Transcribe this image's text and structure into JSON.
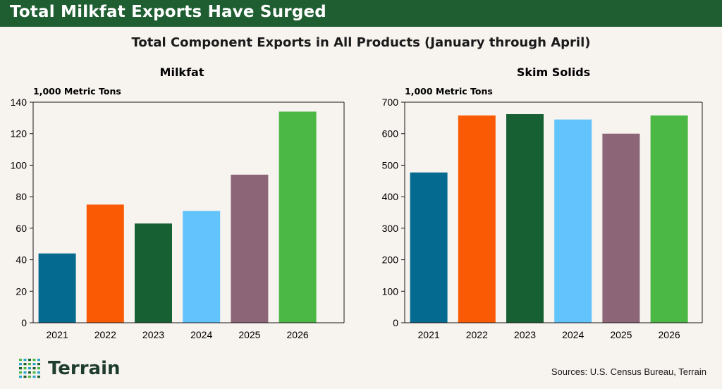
{
  "header": {
    "title": "Total Milkfat Exports Have Surged"
  },
  "main_title": "Total Component Exports in All Products (January through April)",
  "footer": {
    "logo_text": "Terrain",
    "sources": "Sources: U.S. Census Bureau, Terrain"
  },
  "colors": {
    "banner": "#1e5e31",
    "bars": [
      "#046a90",
      "#fb5a04",
      "#176033",
      "#63c4fd",
      "#8c6577",
      "#4bb845"
    ]
  },
  "chart_data": [
    {
      "type": "bar",
      "title": "Milkfat",
      "ylabel": "1,000 Metric Tons",
      "categories": [
        "2021",
        "2022",
        "2023",
        "2024",
        "2025",
        "2026"
      ],
      "values": [
        44,
        75,
        63,
        71,
        94,
        134
      ],
      "ylim": [
        0,
        140
      ],
      "yticks": [
        0,
        20,
        40,
        60,
        80,
        100,
        120,
        140
      ],
      "grid": false
    },
    {
      "type": "bar",
      "title": "Skim Solids",
      "ylabel": "1,000 Metric Tons",
      "categories": [
        "2021",
        "2022",
        "2023",
        "2024",
        "2025",
        "2026"
      ],
      "values": [
        477,
        658,
        662,
        645,
        600,
        658
      ],
      "ylim": [
        0,
        700
      ],
      "yticks": [
        0,
        100,
        200,
        300,
        400,
        500,
        600,
        700
      ],
      "grid": false
    }
  ]
}
